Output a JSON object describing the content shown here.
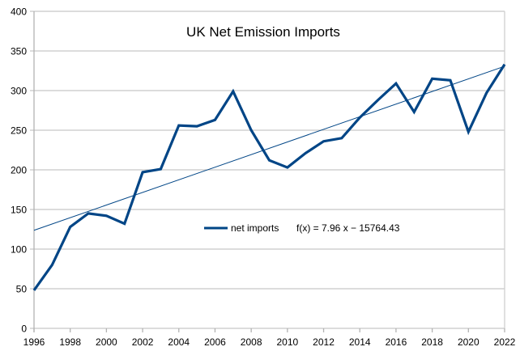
{
  "chart_data": {
    "type": "line",
    "title": "UK Net Emission Imports",
    "xlabel": "",
    "ylabel": "",
    "x": [
      1996,
      1997,
      1998,
      1999,
      2000,
      2001,
      2002,
      2003,
      2004,
      2005,
      2006,
      2007,
      2008,
      2009,
      2010,
      2011,
      2012,
      2013,
      2014,
      2015,
      2016,
      2017,
      2018,
      2019,
      2020,
      2021,
      2022
    ],
    "series": [
      {
        "name": "net imports",
        "color": "#004586",
        "values": [
          48,
          80,
          128,
          145,
          142,
          132,
          197,
          201,
          256,
          255,
          263,
          299,
          250,
          212,
          203,
          221,
          236,
          240,
          266,
          288,
          309,
          273,
          315,
          313,
          248,
          297,
          333
        ]
      }
    ],
    "trendline": {
      "type": "linear",
      "equation": "f(x) = 7.96 x − 15764.43",
      "slope": 7.96,
      "intercept": -15764.43,
      "color": "#004586"
    },
    "xlim": [
      1996,
      2022
    ],
    "ylim": [
      0,
      400
    ],
    "x_ticks": [
      "1996",
      "1998",
      "2000",
      "2002",
      "2004",
      "2006",
      "2008",
      "2010",
      "2012",
      "2014",
      "2016",
      "2018",
      "2020",
      "2022"
    ],
    "y_ticks": [
      "0",
      "50",
      "100",
      "150",
      "200",
      "250",
      "300",
      "350",
      "400"
    ],
    "grid": "horizontal",
    "legend": "center"
  }
}
